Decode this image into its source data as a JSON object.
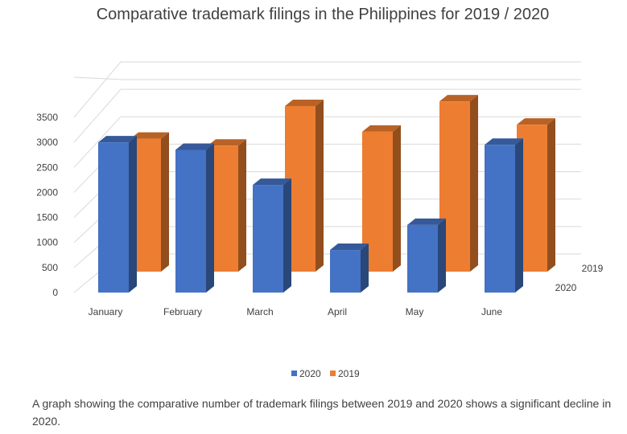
{
  "chart_data": {
    "type": "bar",
    "title": "Comparative trademark filings in the Philippines for 2019 / 2020",
    "categories": [
      "January",
      "February",
      "March",
      "April",
      "May",
      "June"
    ],
    "series": [
      {
        "name": "2020",
        "values": [
          3000,
          2850,
          2150,
          850,
          1350,
          2950
        ],
        "color": "#4472c4"
      },
      {
        "name": "2019",
        "values": [
          2850,
          2700,
          3550,
          3000,
          3650,
          3150
        ],
        "color": "#ed7d31"
      }
    ],
    "yticks": [
      "0",
      "500",
      "1000",
      "1500",
      "2000",
      "2500",
      "3000",
      "3500"
    ],
    "ylim": [
      0,
      3500
    ],
    "depth_labels": [
      "2019",
      "2020"
    ],
    "legend": [
      "2020",
      "2019"
    ],
    "legend_position": "bottom",
    "grid": true,
    "xlabel": "",
    "ylabel": ""
  },
  "caption": "A graph showing the comparative number of trademark filings between 2019 and 2020 shows a significant decline in 2020."
}
